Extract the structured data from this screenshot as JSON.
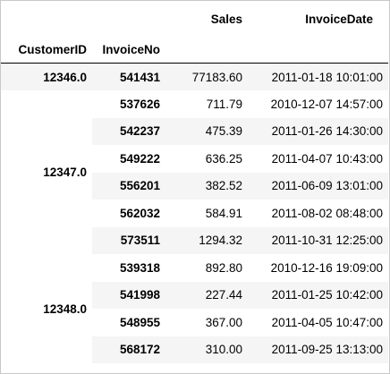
{
  "table": {
    "columns": [
      "Sales",
      "InvoiceDate"
    ],
    "index_names": [
      "CustomerID",
      "InvoiceNo"
    ],
    "groups": [
      {
        "customer_id": "12346.0",
        "rows": [
          {
            "invoice_no": "541431",
            "sales": "77183.60",
            "invoice_date": "2011-01-18 10:01:00"
          }
        ]
      },
      {
        "customer_id": "12347.0",
        "rows": [
          {
            "invoice_no": "537626",
            "sales": "711.79",
            "invoice_date": "2010-12-07 14:57:00"
          },
          {
            "invoice_no": "542237",
            "sales": "475.39",
            "invoice_date": "2011-01-26 14:30:00"
          },
          {
            "invoice_no": "549222",
            "sales": "636.25",
            "invoice_date": "2011-04-07 10:43:00"
          },
          {
            "invoice_no": "556201",
            "sales": "382.52",
            "invoice_date": "2011-06-09 13:01:00"
          },
          {
            "invoice_no": "562032",
            "sales": "584.91",
            "invoice_date": "2011-08-02 08:48:00"
          },
          {
            "invoice_no": "573511",
            "sales": "1294.32",
            "invoice_date": "2011-10-31 12:25:00"
          }
        ]
      },
      {
        "customer_id": "12348.0",
        "rows": [
          {
            "invoice_no": "539318",
            "sales": "892.80",
            "invoice_date": "2010-12-16 19:09:00"
          },
          {
            "invoice_no": "541998",
            "sales": "227.44",
            "invoice_date": "2011-01-25 10:42:00"
          },
          {
            "invoice_no": "548955",
            "sales": "367.00",
            "invoice_date": "2011-04-05 10:47:00"
          },
          {
            "invoice_no": "568172",
            "sales": "310.00",
            "invoice_date": "2011-09-25 13:13:00"
          }
        ]
      }
    ]
  }
}
